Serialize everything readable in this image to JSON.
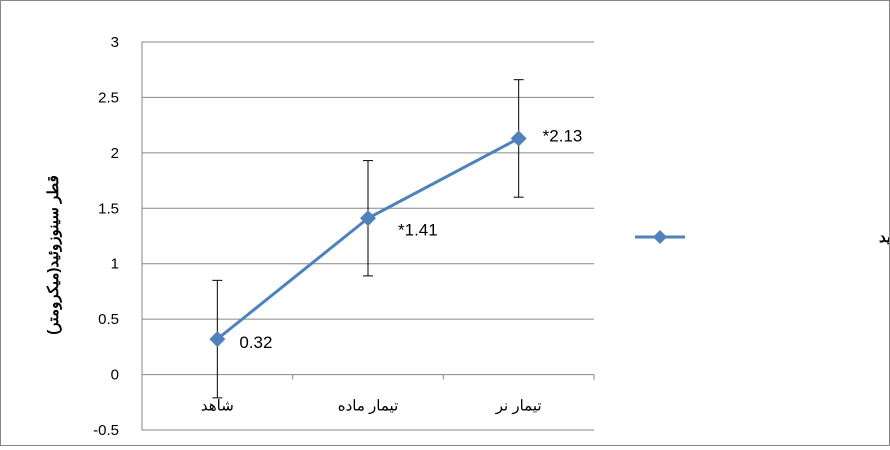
{
  "chart_data": {
    "type": "line",
    "title": "",
    "xlabel": "",
    "ylabel": "قطر سینوزوئید(میکرومتر)",
    "ylim": [
      -0.5,
      3
    ],
    "yticks": [
      -0.5,
      0,
      0.5,
      1,
      1.5,
      2,
      2.5,
      3
    ],
    "ytick_labels": [
      "-0.5",
      "0",
      "0.5",
      "1",
      "1.5",
      "2",
      "2.5",
      "3"
    ],
    "categories": [
      "شاهد",
      "تیمار ماده",
      "تیمار نر"
    ],
    "grid": "horizontal",
    "legend": "right",
    "series": [
      {
        "name": "تغییرات قطر سینوزوئید",
        "color": "#4F81BD",
        "marker": "diamond",
        "values": [
          0.32,
          1.41,
          2.13
        ],
        "error": [
          0.53,
          0.52,
          0.53
        ],
        "data_labels": [
          "0.32",
          "*1.41",
          "*2.13"
        ]
      }
    ]
  }
}
